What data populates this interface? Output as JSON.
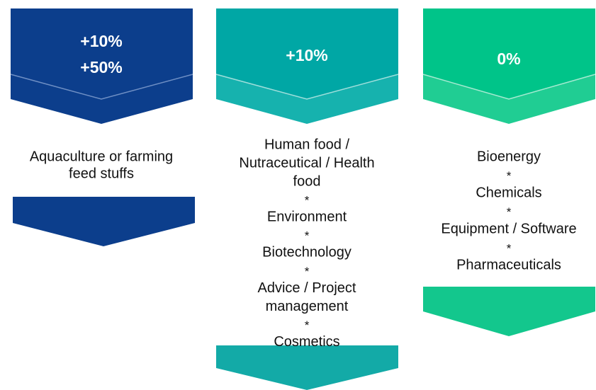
{
  "columns": [
    {
      "header": [
        "+10%",
        "+50%"
      ],
      "items": [
        [
          "Aquaculture or farming",
          "feed stuffs"
        ]
      ],
      "separator": "*"
    },
    {
      "header": [
        "+10%"
      ],
      "items": [
        [
          "Human food /",
          "Nutraceutical / Health",
          "food"
        ],
        [
          "Environment"
        ],
        [
          "Biotechnology"
        ],
        [
          "Advice / Project",
          "management"
        ],
        [
          "Cosmetics"
        ]
      ],
      "separator": "*"
    },
    {
      "header": [
        "0%"
      ],
      "items": [
        [
          "Bioenergy"
        ],
        [
          "Chemicals"
        ],
        [
          "Equipment / Software"
        ],
        [
          "Pharmaceuticals"
        ]
      ],
      "separator": "*"
    }
  ]
}
